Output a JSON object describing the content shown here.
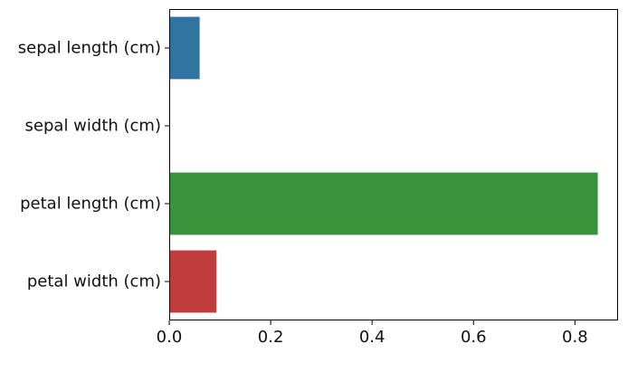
{
  "chart_data": {
    "type": "bar",
    "orientation": "horizontal",
    "categories": [
      "sepal length (cm)",
      "sepal width (cm)",
      "petal length (cm)",
      "petal width (cm)"
    ],
    "values": [
      0.06,
      0.0,
      0.845,
      0.093
    ],
    "colors": [
      "#3274a1",
      "#e1812c",
      "#3a923a",
      "#c03d3e"
    ],
    "xlim": [
      0,
      0.885
    ],
    "xticks": [
      0.0,
      0.2,
      0.4,
      0.6,
      0.8
    ],
    "xtick_labels": [
      "0.0",
      "0.2",
      "0.4",
      "0.6",
      "0.8"
    ],
    "title": "",
    "xlabel": "",
    "ylabel": "",
    "grid": false,
    "legend": "none"
  }
}
